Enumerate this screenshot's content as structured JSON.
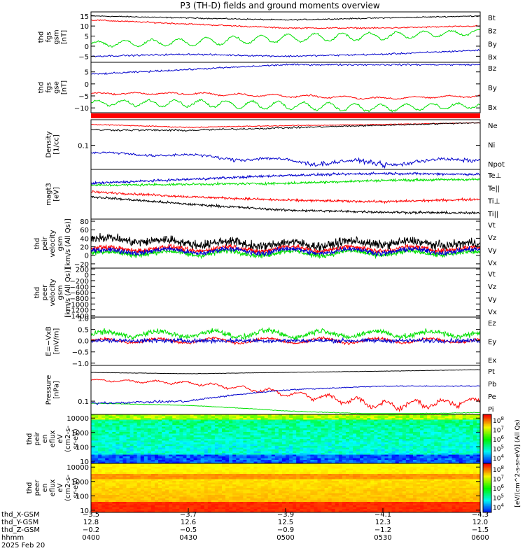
{
  "title": "P3 (TH-D) fields and ground moments overview",
  "colors": {
    "black": "#000000",
    "red": "#ff0000",
    "green": "#00e000",
    "blue": "#0000cc",
    "bar": "#ff0000"
  },
  "panels": [
    {
      "id": "fgs-gsm",
      "ylabel": [
        "thd",
        "fgs",
        "gsm",
        "[nT]"
      ],
      "ylim": [
        -8,
        17
      ],
      "log": false,
      "ticks": [
        {
          "v": 15,
          "label": "15"
        },
        {
          "v": 10,
          "label": "10"
        },
        {
          "v": 5,
          "label": "5"
        },
        {
          "v": 0,
          "label": "0"
        },
        {
          "v": -5,
          "label": "−5"
        }
      ],
      "legend": [
        {
          "text": "Bt",
          "color": "black"
        },
        {
          "text": "Bz",
          "color": "red"
        },
        {
          "text": "By",
          "color": "green"
        },
        {
          "text": "Bx",
          "color": "blue"
        }
      ]
    },
    {
      "id": "fgs-gse",
      "ylabel": [
        "thd",
        "fgs",
        "gse",
        "[nT]"
      ],
      "ylim": [
        -12,
        9
      ],
      "log": false,
      "ticks": [
        {
          "v": 5,
          "label": "5"
        },
        {
          "v": 0,
          "label": "0"
        },
        {
          "v": -5,
          "label": "−5"
        },
        {
          "v": -10,
          "label": "−10"
        }
      ],
      "legend": [
        {
          "text": "Bz",
          "color": "red"
        },
        {
          "text": "By",
          "color": "green"
        },
        {
          "text": "Bx",
          "color": "blue"
        }
      ]
    },
    {
      "id": "density",
      "ylabel": [
        "Density",
        "[1/cc]"
      ],
      "ylim": [
        0.02,
        0.55
      ],
      "log": true,
      "ticks": [
        {
          "v": 0.1,
          "label": "0.1"
        }
      ],
      "legend": [
        {
          "text": "Ne",
          "color": "red"
        },
        {
          "text": "Ni",
          "color": "black"
        },
        {
          "text": "Npot",
          "color": "blue"
        }
      ]
    },
    {
      "id": "temperature",
      "ylabel": [
        "magt3",
        "[eV]"
      ],
      "ylim": [
        0,
        1
      ],
      "log": false,
      "ticks": [],
      "legend": [
        {
          "text": "Te⊥",
          "color": "red"
        },
        {
          "text": "Te||",
          "color": "black"
        },
        {
          "text": "Ti⊥",
          "color": "red"
        },
        {
          "text": "Ti||",
          "color": "green"
        }
      ]
    },
    {
      "id": "peir-velocity",
      "ylabel": [
        "thd",
        "peir",
        "velocity",
        "gsm",
        "[km/s (All Qs)]"
      ],
      "ylim": [
        -30,
        85
      ],
      "log": false,
      "ticks": [
        {
          "v": 80,
          "label": "80"
        },
        {
          "v": 60,
          "label": "60"
        },
        {
          "v": 40,
          "label": "40"
        },
        {
          "v": 20,
          "label": "20"
        },
        {
          "v": 0,
          "label": "0"
        },
        {
          "v": -20,
          "label": "−20"
        }
      ],
      "legend": [
        {
          "text": "Vt",
          "color": "black"
        },
        {
          "text": "Vz",
          "color": "red"
        },
        {
          "text": "Vy",
          "color": "green"
        },
        {
          "text": "Vx",
          "color": "blue"
        }
      ]
    },
    {
      "id": "peer-velocity",
      "ylabel": [
        "thd",
        "peer",
        "velocity",
        "gsm",
        "[km/s (All Qs)]"
      ],
      "ylim": [
        -1450,
        230
      ],
      "log": false,
      "ticks": [
        {
          "v": 200,
          "label": "200"
        },
        {
          "v": 0,
          "label": "0"
        },
        {
          "v": -200,
          "label": "−200"
        },
        {
          "v": -400,
          "label": "−400"
        },
        {
          "v": -600,
          "label": "−600"
        },
        {
          "v": -800,
          "label": "−800"
        },
        {
          "v": -1000,
          "label": "−1000"
        },
        {
          "v": -1200,
          "label": "−1200"
        },
        {
          "v": -1400,
          "label": "−1400"
        }
      ],
      "legend": [
        {
          "text": "Vt",
          "color": "black"
        },
        {
          "text": "Vz",
          "color": "red"
        },
        {
          "text": "Vy",
          "color": "green"
        },
        {
          "text": "Vx",
          "color": "blue"
        }
      ]
    },
    {
      "id": "efield",
      "ylabel": [
        "E=−VxB",
        "[mV/m]"
      ],
      "ylim": [
        -1.1,
        1.05
      ],
      "log": false,
      "ticks": [
        {
          "v": 1.0,
          "label": "1.0"
        },
        {
          "v": 0.5,
          "label": "0.5"
        },
        {
          "v": 0.0,
          "label": "0.0"
        },
        {
          "v": -0.5,
          "label": "−0.5"
        },
        {
          "v": -1.0,
          "label": "−1.0"
        }
      ],
      "legend": [
        {
          "text": "Ez",
          "color": "red"
        },
        {
          "text": "Ey",
          "color": "green"
        },
        {
          "text": "Ex",
          "color": "blue"
        }
      ]
    },
    {
      "id": "pressure",
      "ylabel": [
        "Pressure",
        "[nPa]"
      ],
      "ylim": [
        0.05,
        0.65
      ],
      "log": true,
      "ticks": [
        {
          "v": 0.1,
          "label": "0.1"
        }
      ],
      "legend": [
        {
          "text": "Pt",
          "color": "black"
        },
        {
          "text": "Pb",
          "color": "red"
        },
        {
          "text": "Pe",
          "color": "green"
        },
        {
          "text": "Pi",
          "color": "blue"
        }
      ]
    },
    {
      "id": "peir-spec",
      "ylabel": [
        "thd",
        "peir",
        "en",
        "eflux",
        "eV",
        "(cm2-s-",
        "sr-eV)"
      ],
      "ylim": [
        7,
        18000
      ],
      "log": true,
      "ticks": [
        {
          "v": 10000,
          "label": "10000"
        },
        {
          "v": 1000,
          "label": "1000"
        },
        {
          "v": 100,
          "label": "100"
        },
        {
          "v": 10,
          "label": "10"
        }
      ],
      "legend": []
    },
    {
      "id": "peer-spec",
      "ylabel": [
        "thd",
        "peer",
        "en",
        "eflux",
        "eV",
        "(cm2-s-",
        "sr-eV)"
      ],
      "ylim": [
        7,
        18000
      ],
      "log": true,
      "ticks": [
        {
          "v": 10000,
          "label": "10000"
        },
        {
          "v": 1000,
          "label": "1000"
        },
        {
          "v": 100,
          "label": "100"
        },
        {
          "v": 10,
          "label": "10"
        }
      ],
      "legend": []
    }
  ],
  "colorbar": {
    "label": "[eV/(cm^2-s-sr-eV)] (All Qs)",
    "label_upper": "[eV/(cm^2-s-sr-eV) (All Qs)]",
    "ticks_upper": [
      {
        "exp": "8"
      },
      {
        "exp": "7"
      },
      {
        "exp": "6"
      },
      {
        "exp": "5"
      },
      {
        "exp": "4"
      }
    ],
    "ticks_lower": [
      {
        "exp": "8"
      },
      {
        "exp": "7"
      },
      {
        "exp": "6"
      },
      {
        "exp": "5"
      },
      {
        "exp": "4"
      }
    ]
  },
  "xaxis": {
    "row_labels": [
      "thd_X-GSM",
      "thd_Y-GSM",
      "thd_Z-GSM",
      "hhmm",
      "2025 Feb 20"
    ],
    "ticks": [
      {
        "x": -3.5,
        "y": 12.8,
        "z": -0.2,
        "hhmm": "0400"
      },
      {
        "x": -3.7,
        "y": 12.6,
        "z": -0.5,
        "hhmm": "0430"
      },
      {
        "x": -3.9,
        "y": 12.5,
        "z": -0.9,
        "hhmm": "0500"
      },
      {
        "x": -4.1,
        "y": 12.3,
        "z": -1.2,
        "hhmm": "0530"
      },
      {
        "x": -4.3,
        "y": 12.0,
        "z": -1.5,
        "hhmm": "0600"
      }
    ]
  },
  "chart_data": {
    "type": "line",
    "title": "P3 (TH-D) fields and ground moments overview",
    "x": [
      "0400",
      "0430",
      "0500",
      "0530",
      "0600"
    ],
    "xlabel": "hhmm",
    "series_by_panel": {
      "fgs-gsm": [
        {
          "name": "Bt",
          "values": [
            15,
            14,
            13,
            14,
            15
          ]
        },
        {
          "name": "Bz",
          "values": [
            13,
            11,
            9,
            9,
            10
          ]
        },
        {
          "name": "By",
          "values": [
            1,
            2,
            4,
            5,
            7
          ]
        },
        {
          "name": "Bx",
          "values": [
            -5,
            -4,
            -5,
            -4,
            -2
          ]
        }
      ],
      "fgs-gse": [
        {
          "name": "Bz",
          "values": [
            -4,
            -4,
            -5,
            -6,
            -5
          ]
        },
        {
          "name": "By",
          "values": [
            -8,
            -8,
            -9,
            -10,
            -9
          ]
        },
        {
          "name": "Bx",
          "values": [
            4,
            6,
            8,
            8,
            8
          ]
        }
      ],
      "density": [
        {
          "name": "Ne",
          "values": [
            0.4,
            0.33,
            0.37,
            0.4,
            0.45
          ]
        },
        {
          "name": "Ni",
          "values": [
            0.28,
            0.27,
            0.32,
            0.38,
            0.45
          ]
        },
        {
          "name": "Npot",
          "values": [
            0.06,
            0.05,
            0.035,
            0.03,
            0.04
          ]
        }
      ],
      "peir-velocity": [
        {
          "name": "Vt",
          "values": [
            40,
            30,
            25,
            30,
            25
          ]
        },
        {
          "name": "Vz",
          "values": [
            15,
            15,
            15,
            15,
            15
          ]
        },
        {
          "name": "Vy",
          "values": [
            5,
            5,
            5,
            5,
            5
          ]
        },
        {
          "name": "Vx",
          "values": [
            10,
            10,
            10,
            10,
            10
          ]
        }
      ],
      "efield": [
        {
          "name": "Ez",
          "values": [
            0,
            0,
            0,
            0,
            0
          ]
        },
        {
          "name": "Ey",
          "values": [
            0.3,
            0.3,
            0.3,
            0.3,
            0.3
          ]
        },
        {
          "name": "Ex",
          "values": [
            0,
            0,
            0,
            0,
            0
          ]
        }
      ],
      "pressure": [
        {
          "name": "Pt",
          "values": [
            0.45,
            0.42,
            0.45,
            0.48,
            0.52
          ]
        },
        {
          "name": "Pb",
          "values": [
            0.3,
            0.26,
            0.15,
            0.08,
            0.1
          ]
        },
        {
          "name": "Pe",
          "values": [
            0.09,
            0.08,
            0.06,
            0.05,
            0.055
          ]
        },
        {
          "name": "Pi",
          "values": [
            0.09,
            0.1,
            0.18,
            0.22,
            0.22
          ]
        }
      ]
    },
    "grid": false,
    "legend_placement": "right"
  }
}
